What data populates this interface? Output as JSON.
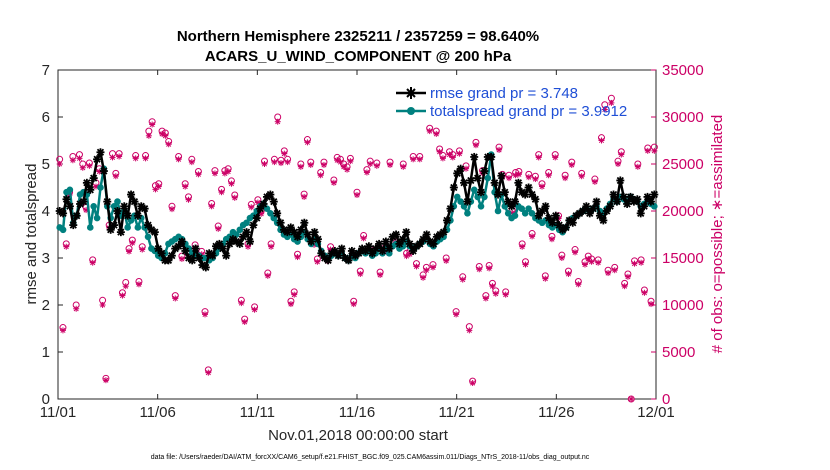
{
  "chart_data": {
    "type": "line",
    "title": "Northern Hemisphere 2325211 / 2357259 = 98.640%",
    "subtitle": "ACARS_U_WIND_COMPONENT @ 200 hPa",
    "xlabel": "Nov.01,2018 00:00:00 start",
    "ylabel": "rmse and totalspread",
    "y2label": "# of obs: o=possible; ∗=assimilated",
    "footnote": "data file: /Users/raeder/DAI/ATM_forcXX/CAM6_setup/f.e21.FHIST_BGC.f09_025.CAM6assim.011/Diags_NTrS_2018-11/obs_diag_output.nc",
    "xlim": [
      0,
      30
    ],
    "ylim": [
      0,
      7
    ],
    "y2lim": [
      0,
      35000
    ],
    "x_tick_values": [
      0,
      5,
      10,
      15,
      20,
      25,
      30
    ],
    "x_tick_labels": [
      "11/01",
      "11/06",
      "11/11",
      "11/16",
      "11/21",
      "11/26",
      "12/01"
    ],
    "y_ticks": [
      "0",
      "1",
      "2",
      "3",
      "4",
      "5",
      "6",
      "7"
    ],
    "y2_ticks": [
      "0",
      "5000",
      "10000",
      "15000",
      "20000",
      "25000",
      "30000",
      "35000"
    ],
    "colors": {
      "rmse": "#000000",
      "spread": "#00807f",
      "obs": "#cc0066",
      "legend_text": "#1f4fd6"
    },
    "series": [
      {
        "name": "rmse grand pr = 3.748",
        "color": "#000000",
        "marker": "star",
        "values": [
          4.0,
          3.95,
          4.25,
          4.1,
          3.7,
          3.9,
          4.15,
          4.2,
          4.6,
          4.45,
          4.7,
          5.1,
          5.25,
          4.85,
          4.2,
          3.6,
          3.7,
          4.0,
          3.55,
          4.1,
          3.9,
          4.35,
          4.2,
          3.9,
          4.1,
          4.05,
          3.7,
          3.6,
          3.55,
          3.2,
          3.1,
          2.95,
          2.95,
          3.05,
          3.2,
          3.25,
          3.35,
          3.15,
          3.0,
          2.95,
          3.2,
          3.0,
          2.85,
          2.8,
          3.1,
          3.05,
          3.25,
          3.3,
          3.2,
          3.05,
          3.3,
          3.4,
          3.35,
          3.3,
          3.45,
          3.55,
          3.35,
          3.7,
          3.85,
          4.05,
          4.15,
          4.3,
          4.35,
          4.2,
          3.95,
          3.75,
          3.6,
          3.55,
          3.65,
          3.55,
          3.45,
          3.6,
          3.75,
          3.5,
          3.35,
          3.55,
          3.4,
          3.1,
          3.0,
          2.95,
          3.1,
          3.15,
          3.05,
          3.2,
          3.0,
          2.95,
          3.15,
          3.05,
          3.1,
          3.2,
          3.15,
          3.25,
          3.1,
          3.2,
          3.3,
          3.15,
          3.35,
          3.2,
          3.45,
          3.5,
          3.3,
          3.4,
          3.55,
          3.3,
          3.15,
          3.25,
          3.3,
          3.4,
          3.5,
          3.35,
          3.3,
          3.45,
          3.5,
          3.55,
          3.8,
          4.05,
          4.5,
          4.8,
          4.9,
          4.6,
          4.2,
          4.65,
          5.15,
          4.7,
          4.4,
          4.85,
          5.15,
          5.15,
          4.6,
          4.35,
          4.75,
          4.4,
          4.2,
          4.1,
          4.2,
          4.6,
          4.4,
          4.35,
          4.5,
          4.35,
          4.25,
          3.9,
          4.0,
          4.1,
          3.85,
          3.75,
          3.9,
          3.7,
          3.6,
          3.65,
          3.8,
          3.75,
          3.9,
          3.95,
          4.0,
          4.1,
          3.95,
          4.05,
          4.2,
          3.9,
          3.8,
          4.0,
          4.1,
          4.35,
          4.2,
          4.65,
          4.3,
          4.15,
          4.3,
          4.2,
          4.25,
          3.95,
          4.1,
          4.3,
          4.2,
          4.35
        ]
      },
      {
        "name": "totalspread grand pr = 3.9912",
        "color": "#00807f",
        "marker": "dot",
        "values": [
          3.65,
          3.6,
          4.4,
          4.45,
          3.75,
          3.9,
          4.35,
          4.4,
          4.35,
          3.65,
          4.1,
          3.85,
          4.5,
          4.9,
          4.1,
          3.85,
          4.1,
          4.2,
          3.9,
          4.0,
          3.65,
          3.8,
          3.9,
          3.65,
          3.85,
          3.65,
          3.45,
          3.2,
          3.15,
          3.05,
          3.0,
          3.1,
          3.3,
          3.35,
          3.4,
          3.45,
          3.4,
          3.3,
          3.2,
          3.1,
          3.05,
          3.05,
          3.0,
          3.0,
          2.95,
          3.0,
          3.1,
          3.2,
          3.3,
          3.4,
          3.45,
          3.55,
          3.5,
          3.6,
          3.7,
          3.75,
          3.85,
          3.9,
          4.0,
          4.1,
          4.15,
          4.05,
          3.95,
          3.85,
          3.75,
          3.6,
          3.5,
          3.45,
          3.5,
          3.4,
          3.35,
          3.45,
          3.55,
          3.4,
          3.3,
          3.4,
          3.3,
          3.15,
          3.05,
          3.0,
          3.05,
          3.1,
          3.05,
          3.1,
          3.0,
          2.95,
          3.05,
          3.0,
          3.1,
          3.15,
          3.1,
          3.15,
          3.05,
          3.1,
          3.2,
          3.1,
          3.2,
          3.1,
          3.25,
          3.3,
          3.2,
          3.25,
          3.35,
          3.25,
          3.2,
          3.25,
          3.3,
          3.35,
          3.4,
          3.3,
          3.25,
          3.35,
          3.4,
          3.45,
          3.6,
          3.8,
          4.1,
          4.3,
          4.2,
          4.1,
          3.95,
          4.2,
          4.45,
          4.3,
          4.1,
          4.3,
          4.7,
          5.2,
          4.4,
          4.0,
          4.35,
          4.1,
          3.95,
          3.85,
          3.9,
          4.1,
          4.05,
          3.95,
          4.05,
          3.95,
          3.85,
          3.8,
          3.75,
          3.8,
          3.7,
          3.65,
          3.7,
          3.6,
          3.55,
          3.65,
          3.8,
          3.85,
          3.9,
          3.95,
          4.0,
          4.05,
          4.0,
          4.05,
          4.1,
          4.0,
          3.95,
          4.05,
          4.15,
          4.25,
          4.2,
          4.3,
          4.25,
          4.2,
          4.3,
          4.25,
          4.2,
          4.1,
          4.15,
          4.2,
          4.15,
          4.1
        ]
      }
    ],
    "obs_count": {
      "axis": "right",
      "color": "#cc0066",
      "possible": [
        25500,
        7600,
        16500,
        22000,
        25800,
        10000,
        26000,
        25000,
        20400,
        25100,
        14800,
        23000,
        24500,
        10500,
        2200,
        18500,
        26100,
        24000,
        26100,
        11300,
        12400,
        16000,
        16900,
        25900,
        12500,
        16200,
        25900,
        28500,
        29500,
        22700,
        22900,
        28500,
        28300,
        27400,
        20500,
        11000,
        25800,
        15200,
        22900,
        21500,
        25500,
        16400,
        24200,
        15700,
        9300,
        3100,
        20800,
        24300,
        18400,
        22300,
        24300,
        24500,
        23200,
        21700,
        17000,
        10500,
        8500,
        16500,
        20700,
        9800,
        21200,
        20000,
        25300,
        13400,
        16500,
        25500,
        30000,
        25400,
        26400,
        25500,
        10400,
        11400,
        15400,
        25000,
        21800,
        27600,
        25200,
        16700,
        14900,
        24100,
        25200,
        15000,
        16200,
        23300,
        25700,
        25500,
        25000,
        24700,
        25600,
        10400,
        22000,
        13600,
        17400,
        24400,
        25300,
        15800,
        25100,
        13500,
        16000,
        15900,
        25200,
        16700,
        16700,
        16500,
        25000,
        15500,
        15700,
        25800,
        14400,
        25800,
        13200,
        14000,
        28800,
        14300,
        28500,
        26600,
        25900,
        15000,
        26300,
        26000,
        9300,
        26400,
        13000,
        24800,
        7700,
        1900,
        27300,
        14100,
        24300,
        11000,
        14200,
        12300,
        11500,
        26800,
        23900,
        11400,
        23800,
        20100,
        24100,
        24200,
        16500,
        14600,
        23900,
        17600,
        23700,
        26000,
        22900,
        13100,
        24100,
        17300,
        26000,
        19500,
        15300,
        23800,
        13600,
        25200,
        15900,
        12500,
        24000,
        14600,
        15200,
        14900,
        23400,
        14800,
        27800,
        31300,
        13700,
        32000,
        14000,
        25300,
        26300,
        12300,
        13300,
        0,
        14700,
        25000,
        14800,
        11600,
        26700,
        10400,
        26800
      ],
      "assimilated": [
        25000,
        7300,
        16200,
        21700,
        25400,
        9600,
        25600,
        24600,
        20100,
        24800,
        14500,
        22600,
        24200,
        10000,
        2000,
        18200,
        25700,
        23700,
        25800,
        11000,
        12000,
        15700,
        16600,
        25600,
        12200,
        15900,
        25600,
        28000,
        29200,
        22300,
        22600,
        28200,
        28000,
        27100,
        20200,
        10700,
        25500,
        14900,
        22600,
        21200,
        25200,
        16100,
        23900,
        15400,
        9000,
        2800,
        20500,
        24000,
        18100,
        22000,
        24000,
        24200,
        22900,
        21400,
        16700,
        10200,
        8200,
        16200,
        20400,
        9500,
        20900,
        19700,
        25000,
        13100,
        16200,
        25200,
        29500,
        25100,
        26100,
        25200,
        10100,
        11100,
        15100,
        24700,
        21500,
        27300,
        24900,
        16400,
        14600,
        23800,
        24900,
        14700,
        15900,
        23000,
        25400,
        25200,
        24700,
        24400,
        25300,
        10100,
        21700,
        13300,
        17100,
        24100,
        25000,
        15500,
        24800,
        13200,
        15700,
        15600,
        24900,
        16400,
        16400,
        16200,
        24700,
        15200,
        15400,
        25500,
        14100,
        25500,
        12900,
        13700,
        28500,
        14000,
        28200,
        26300,
        25600,
        14700,
        26000,
        25700,
        9000,
        26100,
        12700,
        24500,
        7300,
        1700,
        27000,
        13800,
        24000,
        10700,
        13900,
        12000,
        11200,
        26500,
        23600,
        11100,
        23500,
        19800,
        23800,
        23900,
        16200,
        14300,
        23600,
        17300,
        23400,
        25700,
        22600,
        12800,
        23800,
        17000,
        25700,
        19200,
        15000,
        23500,
        13300,
        24900,
        15600,
        12200,
        23700,
        14300,
        14900,
        14600,
        23100,
        14500,
        27500,
        30800,
        13400,
        31500,
        13700,
        25000,
        26000,
        12000,
        13000,
        0,
        14400,
        24700,
        14500,
        11300,
        26400,
        10100,
        26400
      ]
    }
  }
}
